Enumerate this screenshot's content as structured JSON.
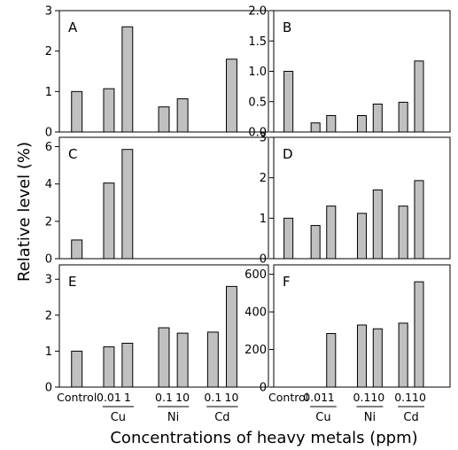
{
  "figure": {
    "ylabel": "Relative level (%)",
    "xlabel": "Concentrations of heavy metals (ppm)",
    "category_labels": [
      "Control",
      "0.01",
      "1",
      "0.1",
      "10",
      "0.1",
      "10"
    ],
    "group_labels": [
      "Cu",
      "Ni",
      "Cd"
    ]
  },
  "chart_data": [
    {
      "panel": "A",
      "type": "bar",
      "categories": [
        "Control",
        "Cu 0.01",
        "Cu 1",
        "Ni 0.1",
        "Ni 10",
        "Cd 0.1",
        "Cd 10"
      ],
      "values": [
        1.0,
        1.07,
        2.6,
        0.62,
        0.82,
        null,
        1.8
      ],
      "ylim": [
        0,
        3
      ],
      "yticks": [
        "0",
        "1",
        "2",
        "3"
      ]
    },
    {
      "panel": "B",
      "type": "bar",
      "categories": [
        "Control",
        "Cu 0.01",
        "Cu 1",
        "Ni 0.1",
        "Ni 10",
        "Cd 0.1",
        "Cd 10"
      ],
      "values": [
        1.0,
        0.15,
        0.27,
        0.27,
        0.46,
        0.49,
        1.17
      ],
      "ylim": [
        0,
        2
      ],
      "yticks": [
        "0.0",
        "0.5",
        "1.0",
        "1.5",
        "2.0"
      ]
    },
    {
      "panel": "C",
      "type": "bar",
      "categories": [
        "Control",
        "Cu 0.01",
        "Cu 1",
        "Ni 0.1",
        "Ni 10",
        "Cd 0.1",
        "Cd 10"
      ],
      "values": [
        1.0,
        4.05,
        5.85,
        null,
        null,
        null,
        null
      ],
      "ylim": [
        0,
        6.5
      ],
      "yticks": [
        "0",
        "2",
        "4",
        "6"
      ]
    },
    {
      "panel": "D",
      "type": "bar",
      "categories": [
        "Control",
        "Cu 0.01",
        "Cu 1",
        "Ni 0.1",
        "Ni 10",
        "Cd 0.1",
        "Cd 10"
      ],
      "values": [
        1.0,
        0.82,
        1.3,
        1.12,
        1.7,
        1.3,
        1.93
      ],
      "ylim": [
        0,
        3
      ],
      "yticks": [
        "0",
        "1",
        "2",
        "3"
      ]
    },
    {
      "panel": "E",
      "type": "bar",
      "categories": [
        "Control",
        "Cu 0.01",
        "Cu 1",
        "Ni 0.1",
        "Ni 10",
        "Cd 0.1",
        "Cd 10"
      ],
      "values": [
        1.0,
        1.12,
        1.22,
        1.65,
        1.5,
        1.53,
        2.8
      ],
      "ylim": [
        0,
        3.4
      ],
      "yticks": [
        "0",
        "1",
        "2",
        "3"
      ]
    },
    {
      "panel": "F",
      "type": "bar",
      "categories": [
        "Control",
        "Cu 0.01",
        "Cu 1",
        "Ni 0.1",
        "Ni 10",
        "Cd 0.1",
        "Cd 10"
      ],
      "values": [
        null,
        null,
        285,
        330,
        310,
        340,
        560
      ],
      "ylim": [
        0,
        650
      ],
      "yticks": [
        "0",
        "200",
        "400",
        "600"
      ]
    }
  ]
}
